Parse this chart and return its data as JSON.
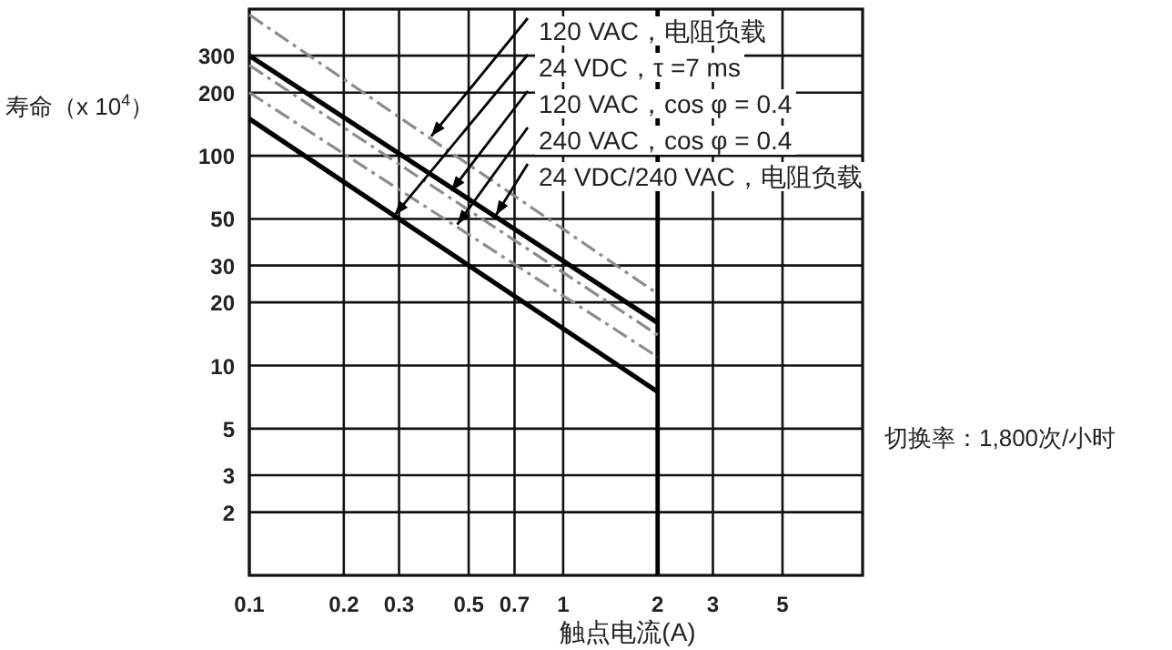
{
  "chart_data": {
    "type": "line",
    "ylabel": "寿命（x 10$^{4}$）",
    "xlabel": "触点电流(A)",
    "log": "xy",
    "xlim": [
      0.1,
      9
    ],
    "ylim": [
      1,
      500
    ],
    "xticks": [
      0.1,
      0.2,
      0.3,
      0.5,
      0.7,
      1,
      2,
      3,
      5
    ],
    "yticks": [
      2,
      3,
      5,
      10,
      20,
      30,
      50,
      100,
      200,
      300
    ],
    "grid": true,
    "marker": "none",
    "x": [
      0.1,
      2
    ],
    "series": [
      {
        "color": "#8c8c8c",
        "line_style": "dashed",
        "values": [
          470,
          22
        ]
      },
      {
        "color": "#000000",
        "line_style": "solid",
        "values": [
          300,
          16
        ]
      },
      {
        "color": "#8c8c8c",
        "line_style": "dashed",
        "values": [
          270,
          14
        ]
      },
      {
        "color": "#8c8c8c",
        "line_style": "dashed",
        "values": [
          200,
          11
        ]
      },
      {
        "color": "#000000",
        "line_style": "solid",
        "values": [
          150,
          7.5
        ]
      }
    ],
    "ref_lines": [
      {
        "axis": "x",
        "value": 2,
        "color": "#000000"
      }
    ],
    "annotations": [
      {
        "text": "120 VAC，电阻负载",
        "x": 0.38,
        "y": 124
      },
      {
        "text": "24 VDC，τ =7 ms",
        "x": 0.29,
        "y": 52
      },
      {
        "text": "120 VAC，cos φ = 0.4",
        "x": 0.44,
        "y": 68
      },
      {
        "text": "240 VAC，cos φ = 0.4",
        "x": 0.46,
        "y": 47
      },
      {
        "text": "24 VDC/240 VAC，电阻负载",
        "x": 0.61,
        "y": 52
      },
      "切换率：1,800次/小时"
    ]
  }
}
